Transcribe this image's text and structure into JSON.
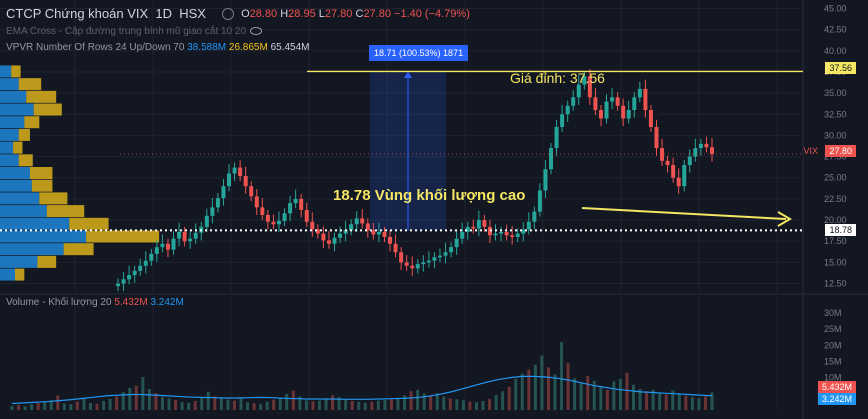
{
  "header": {
    "symbol_title": "CTCP Chứng khoán VIX",
    "interval": "1D",
    "exchange": "HSX",
    "ohlc": {
      "o_label": "O",
      "o": "28.80",
      "h_label": "H",
      "h": "28.95",
      "l_label": "L",
      "l": "27.80",
      "c_label": "C",
      "c": "27.80",
      "change": "−1.40 (−4.79%)"
    },
    "ema_label": "EMA Cross - Cặp đường trung bình mũ giao cắt 10 20",
    "vpvr_label": "VPVR Number Of Rows 24 Up/Down 70",
    "vpvr_up": "38.588M",
    "vpvr_down": "26.865M",
    "vpvr_total": "65.454M",
    "volume_label": "Volume - Khối lượng 20",
    "volume_val1": "5.432M",
    "volume_val2": "3.242M"
  },
  "annotations": {
    "peak_text": "Giá đỉnh: 37.56",
    "zone_text": "18.78 Vùng khối lượng cao",
    "measure_box": "18.71 (100.53%) 1871"
  },
  "price_tags": {
    "peak": "37.56",
    "current_symbol": "VIX",
    "current": "27.80",
    "zone": "18.78",
    "vol1": "5.432M",
    "vol2": "3.242M"
  },
  "colors": {
    "background": "#131722",
    "up": "#26a69a",
    "down": "#ef5350",
    "vpvr_up": "#2196f3",
    "vpvr_down": "#f5c518",
    "annotation": "#f5e663"
  },
  "chart_data": [
    {
      "type": "candlestick",
      "title": "CTCP Chứng khoán VIX",
      "y_axis": {
        "ticks": [
          "45.00",
          "42.50",
          "40.00",
          "37.50",
          "35.00",
          "32.50",
          "30.00",
          "27.50",
          "25.00",
          "22.50",
          "20.00",
          "17.50",
          "15.00",
          "12.50"
        ],
        "range": [
          11.5,
          46.0
        ]
      },
      "approx_close_path": [
        12.5,
        13.0,
        13.5,
        14.0,
        14.6,
        15.2,
        16.0,
        16.8,
        17.2,
        16.5,
        17.8,
        18.6,
        17.5,
        17.8,
        18.5,
        19.2,
        20.5,
        21.5,
        22.6,
        24.0,
        25.5,
        26.2,
        25.2,
        24.0,
        22.8,
        21.5,
        20.6,
        19.8,
        19.5,
        19.9,
        20.8,
        22.0,
        22.5,
        21.2,
        19.8,
        18.9,
        18.4,
        17.6,
        17.2,
        17.9,
        18.4,
        18.8,
        19.5,
        20.2,
        19.6,
        18.8,
        18.3,
        18.6,
        18.0,
        17.2,
        16.2,
        15.0,
        14.6,
        14.3,
        14.8,
        15.0,
        15.2,
        15.6,
        15.8,
        16.2,
        16.8,
        17.8,
        18.6,
        19.2,
        19.0,
        20.0,
        19.2,
        18.2,
        18.4,
        18.6,
        18.2,
        18.0,
        18.4,
        18.9,
        19.8,
        21.0,
        23.5,
        26.0,
        28.5,
        31.0,
        32.5,
        33.5,
        34.5,
        36.0,
        37.0,
        34.5,
        33.0,
        32.0,
        34.0,
        34.5,
        33.5,
        32.0,
        33.0,
        34.5,
        35.5,
        33.0,
        31.0,
        28.5,
        27.0,
        26.5,
        25.0,
        24.0,
        26.5,
        27.5,
        28.5,
        29.0,
        28.6,
        27.8
      ]
    },
    {
      "type": "bar",
      "name": "VPVR",
      "categories_price": [
        37.5,
        36.0,
        34.5,
        33.0,
        31.5,
        30.0,
        28.5,
        27.0,
        25.5,
        24.0,
        22.5,
        21.0,
        19.5,
        18.0,
        16.5,
        15.0,
        13.5
      ],
      "series": [
        {
          "name": "up",
          "values": [
            1.2,
            2.0,
            2.8,
            3.6,
            2.6,
            2.0,
            1.4,
            2.0,
            3.2,
            3.4,
            4.2,
            5.0,
            7.4,
            9.2,
            6.8,
            4.0,
            1.6
          ]
        },
        {
          "name": "down",
          "values": [
            1.0,
            2.4,
            3.2,
            3.0,
            1.6,
            1.2,
            1.0,
            1.5,
            2.4,
            2.2,
            3.0,
            4.0,
            4.2,
            7.8,
            3.2,
            2.0,
            1.0
          ]
        }
      ]
    },
    {
      "type": "bar",
      "name": "Volume",
      "y_axis": {
        "ticks": [
          "30M",
          "25M",
          "20M",
          "15M",
          "10M",
          "5M"
        ],
        "range": [
          0,
          34
        ]
      },
      "values": [
        1.2,
        1.5,
        1.1,
        1.8,
        2.2,
        2.5,
        3.0,
        4.5,
        2.0,
        1.8,
        2.6,
        3.5,
        2.2,
        1.9,
        2.8,
        3.4,
        4.2,
        5.5,
        6.8,
        7.5,
        10.2,
        6.5,
        5.2,
        4.0,
        3.6,
        3.1,
        2.4,
        2.2,
        2.8,
        3.9,
        5.6,
        4.2,
        3.8,
        3.2,
        2.9,
        3.6,
        2.4,
        2.1,
        1.9,
        2.6,
        3.2,
        3.8,
        5.0,
        6.0,
        4.2,
        3.0,
        2.7,
        2.9,
        3.4,
        4.6,
        4.0,
        3.1,
        2.8,
        2.5,
        2.2,
        2.6,
        2.9,
        3.1,
        3.3,
        3.8,
        4.5,
        5.8,
        6.2,
        5.1,
        4.4,
        5.2,
        4.1,
        3.6,
        3.3,
        3.0,
        2.6,
        2.4,
        2.8,
        3.4,
        4.6,
        5.8,
        7.2,
        9.6,
        11.2,
        12.5,
        14.0,
        16.8,
        13.2,
        11.0,
        21.0,
        14.5,
        9.8,
        8.2,
        10.5,
        9.0,
        7.4,
        6.2,
        8.8,
        9.6,
        11.5,
        7.8,
        6.5,
        5.8,
        6.2,
        5.4,
        4.8,
        6.0,
        5.2,
        4.4,
        4.0,
        3.6,
        4.2,
        5.4
      ],
      "ma20_path": [
        2.0,
        2.2,
        2.4,
        2.6,
        2.9,
        3.2,
        3.6,
        4.0,
        4.4,
        4.6,
        4.8,
        4.8,
        4.6,
        4.4,
        4.2,
        4.0,
        3.9,
        3.8,
        3.7,
        3.7,
        3.8,
        3.9,
        3.8,
        3.6,
        3.5,
        3.4,
        3.4,
        3.4,
        3.3,
        3.3,
        3.3,
        3.4,
        3.5,
        3.6,
        3.8,
        4.2,
        4.8,
        5.6,
        6.6,
        7.6,
        8.6,
        9.4,
        10.0,
        10.4,
        10.4,
        10.2,
        9.8,
        9.2,
        8.4,
        7.6,
        7.0,
        6.4,
        6.0,
        5.6,
        5.4,
        5.2,
        5.0,
        4.8,
        4.6,
        4.4
      ]
    }
  ]
}
